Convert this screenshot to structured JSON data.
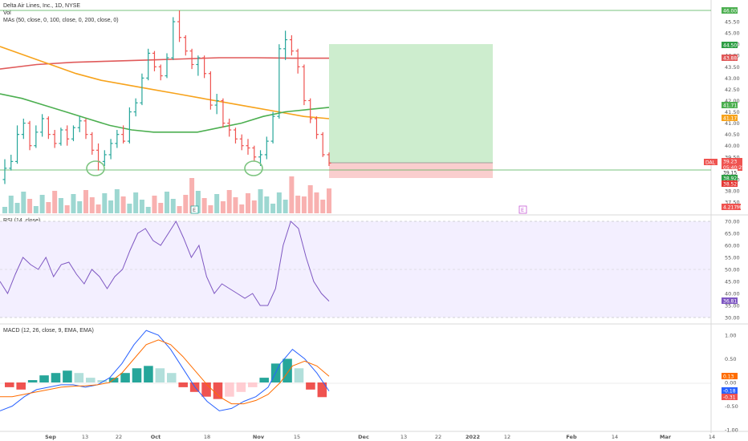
{
  "price_pane": {
    "title": "Delta Air Lines, Inc., 1D, NYSE",
    "vol_label": "Vol",
    "mas_label": "MAs (50, close, 0, 100, close, 0, 200, close, 0)",
    "earnings_marker": "E",
    "y_axis_labels": [
      "45.50",
      "45.00",
      "44.50",
      "44.00",
      "43.50",
      "43.00",
      "42.50",
      "42.00",
      "41.50",
      "41.00",
      "40.50",
      "40.00",
      "39.50",
      "39.00",
      "38.50",
      "38.00",
      "37.50"
    ],
    "badges": {
      "top_line": "46.00",
      "target": "44.50",
      "ma200": "43.88",
      "ma50": "41.71",
      "ma100": "41.17",
      "ticker": "DAL",
      "last_price": "39.23",
      "countdown": "05:40:25",
      "support": "39.15",
      "stop_upper": "38.92",
      "stop_lower": "38.52",
      "volume": "4.217M"
    }
  },
  "rsi_pane": {
    "title": "RSI (14, close)",
    "y_axis_labels": [
      "70.00",
      "65.00",
      "60.00",
      "55.00",
      "50.00",
      "45.00",
      "40.00",
      "35.00",
      "30.00"
    ],
    "value_badge": "36.81"
  },
  "macd_pane": {
    "title": "MACD (12, 26, close, 9, EMA, EMA)",
    "y_axis_labels": [
      "1.00",
      "0.50",
      "0.00",
      "-0.50",
      "-1.00"
    ],
    "badges": {
      "signal": "0.13",
      "macd": "-0.18",
      "hist": "-0.31"
    }
  },
  "time_axis": [
    "Sep",
    "13",
    "22",
    "Oct",
    "18",
    "Nov",
    "15",
    "Dec",
    "13",
    "22",
    "2022",
    "12",
    "Feb",
    "14",
    "Mar",
    "14"
  ],
  "colors": {
    "up": "#26a69a",
    "down": "#ef5350",
    "ma50": "#4caf50",
    "ma100": "#f7a31c",
    "ma200": "#e05a5a",
    "rsi_line": "#7e57c2",
    "macd_line": "#2962ff",
    "signal_line": "#ff6d00",
    "target_zone": "#c8ebc9",
    "stop_zone": "#f9c9c9"
  },
  "chart_data": {
    "type": "bar",
    "price_bars_ohlc_approx": [
      [
        38.5,
        39.4,
        38.3,
        39.0
      ],
      [
        39.0,
        39.6,
        38.9,
        39.3
      ],
      [
        39.3,
        40.9,
        39.2,
        40.5
      ],
      [
        40.5,
        41.2,
        40.3,
        41.0
      ],
      [
        41.0,
        41.1,
        39.8,
        40.0
      ],
      [
        40.0,
        40.9,
        39.9,
        40.6
      ],
      [
        40.6,
        41.4,
        40.4,
        41.2
      ],
      [
        41.2,
        41.3,
        40.3,
        40.5
      ],
      [
        40.5,
        40.7,
        39.9,
        40.1
      ],
      [
        40.1,
        40.8,
        40.0,
        40.7
      ],
      [
        40.7,
        40.9,
        40.0,
        40.3
      ],
      [
        40.3,
        40.9,
        40.2,
        40.8
      ],
      [
        40.8,
        41.3,
        40.6,
        41.1
      ],
      [
        41.1,
        41.2,
        40.3,
        40.5
      ],
      [
        40.5,
        40.6,
        39.6,
        39.8
      ],
      [
        39.8,
        40.1,
        38.9,
        39.3
      ],
      [
        39.3,
        39.8,
        39.1,
        39.6
      ],
      [
        39.6,
        40.3,
        39.4,
        40.1
      ],
      [
        40.1,
        40.7,
        39.9,
        40.5
      ],
      [
        40.5,
        40.9,
        40.1,
        40.2
      ],
      [
        40.2,
        41.7,
        40.1,
        41.5
      ],
      [
        41.5,
        42.1,
        41.3,
        41.9
      ],
      [
        41.9,
        43.2,
        41.8,
        43.0
      ],
      [
        43.0,
        44.3,
        42.9,
        44.1
      ],
      [
        44.1,
        44.2,
        43.3,
        43.5
      ],
      [
        43.5,
        43.6,
        42.9,
        43.1
      ],
      [
        43.1,
        44.1,
        43.0,
        43.9
      ],
      [
        43.9,
        45.7,
        43.8,
        45.5
      ],
      [
        45.5,
        46.0,
        44.6,
        44.8
      ],
      [
        44.8,
        44.9,
        44.0,
        44.2
      ],
      [
        44.2,
        44.3,
        43.4,
        43.6
      ],
      [
        43.6,
        44.0,
        43.1,
        43.9
      ],
      [
        43.9,
        44.0,
        43.0,
        43.2
      ],
      [
        43.2,
        43.3,
        41.6,
        41.8
      ],
      [
        41.8,
        42.3,
        41.4,
        42.0
      ],
      [
        42.0,
        42.1,
        40.8,
        41.0
      ],
      [
        41.0,
        41.2,
        40.4,
        40.7
      ],
      [
        40.7,
        40.8,
        40.1,
        40.3
      ],
      [
        40.3,
        40.5,
        39.8,
        40.0
      ],
      [
        40.0,
        40.3,
        39.6,
        39.9
      ],
      [
        39.9,
        40.0,
        39.3,
        39.5
      ],
      [
        39.5,
        39.8,
        39.1,
        39.6
      ],
      [
        39.6,
        40.4,
        39.4,
        40.2
      ],
      [
        40.2,
        41.5,
        40.1,
        41.3
      ],
      [
        41.3,
        44.5,
        41.2,
        44.3
      ],
      [
        44.3,
        45.1,
        43.8,
        44.7
      ],
      [
        44.7,
        44.9,
        44.0,
        44.2
      ],
      [
        44.2,
        44.3,
        43.2,
        43.5
      ],
      [
        43.5,
        43.6,
        41.8,
        42.0
      ],
      [
        42.0,
        42.1,
        41.0,
        41.2
      ],
      [
        41.2,
        41.3,
        40.3,
        40.5
      ],
      [
        40.5,
        40.6,
        39.5,
        39.6
      ],
      [
        39.6,
        39.7,
        39.1,
        39.23
      ]
    ],
    "ma50": [
      42.3,
      42.1,
      41.8,
      41.5,
      41.2,
      40.9,
      40.7,
      40.6,
      40.6,
      40.6,
      40.8,
      41.0,
      41.3,
      41.5,
      41.6,
      41.7
    ],
    "ma100": [
      44.4,
      44.0,
      43.6,
      43.2,
      42.9,
      42.7,
      42.5,
      42.3,
      42.1,
      41.9,
      41.7,
      41.5,
      41.3,
      41.2
    ],
    "ma200": [
      43.4,
      43.6,
      43.7,
      43.75,
      43.8,
      43.85,
      43.9,
      43.9,
      43.88,
      43.88
    ],
    "rsi": [
      45,
      40,
      48,
      55,
      52,
      50,
      55,
      47,
      52,
      53,
      48,
      44,
      50,
      47,
      42,
      47,
      50,
      58,
      65,
      67,
      62,
      60,
      65,
      70,
      63,
      55,
      60,
      47,
      40,
      44,
      42,
      40,
      38,
      40,
      35,
      35,
      42,
      60,
      70,
      67,
      55,
      45,
      40,
      36.81
    ],
    "macd": [
      -0.6,
      -0.5,
      -0.3,
      -0.15,
      -0.1,
      -0.05,
      -0.05,
      -0.1,
      -0.05,
      0.1,
      0.4,
      0.8,
      1.1,
      1.0,
      0.7,
      0.3,
      -0.1,
      -0.4,
      -0.6,
      -0.55,
      -0.4,
      -0.3,
      -0.1,
      0.4,
      0.7,
      0.5,
      0.2,
      -0.18
    ],
    "signal": [
      -0.3,
      -0.3,
      -0.25,
      -0.2,
      -0.15,
      -0.1,
      -0.08,
      -0.07,
      -0.05,
      0.0,
      0.2,
      0.5,
      0.8,
      0.9,
      0.8,
      0.55,
      0.25,
      -0.05,
      -0.3,
      -0.45,
      -0.45,
      -0.38,
      -0.25,
      0.0,
      0.35,
      0.45,
      0.35,
      0.13
    ],
    "macd_hist": [
      -0.1,
      -0.15,
      0.05,
      0.15,
      0.2,
      0.25,
      0.2,
      0.1,
      0.05,
      0.1,
      0.2,
      0.3,
      0.35,
      0.3,
      0.2,
      -0.1,
      -0.2,
      -0.3,
      -0.35,
      -0.3,
      -0.2,
      -0.1,
      0.1,
      0.4,
      0.5,
      0.3,
      -0.15,
      -0.31
    ]
  }
}
